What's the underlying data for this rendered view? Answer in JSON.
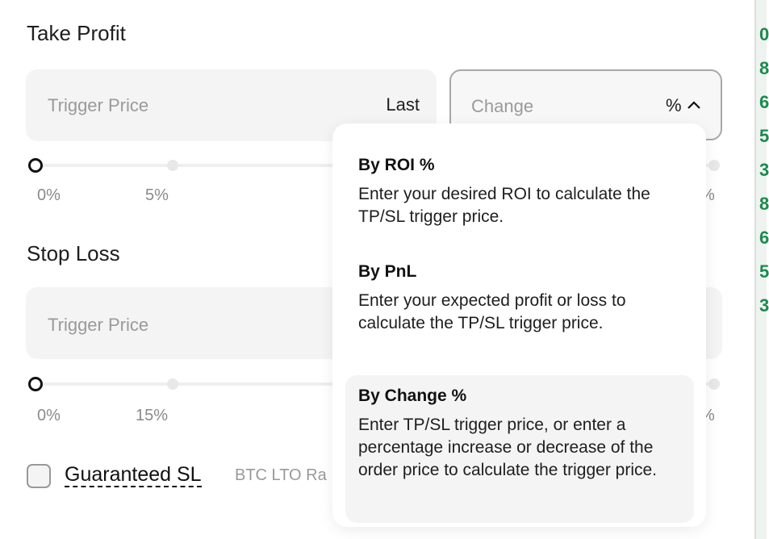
{
  "take_profit": {
    "title": "Take Profit",
    "trigger_placeholder": "Trigger Price",
    "price_type": "Last",
    "mode_placeholder": "Change",
    "mode_unit": "%",
    "slider": {
      "value_percent": 0,
      "ticks": [
        "0%",
        "5%"
      ],
      "end_label_fragment": "%"
    }
  },
  "stop_loss": {
    "title": "Stop Loss",
    "trigger_placeholder": "Trigger Price",
    "slider": {
      "value_percent": 0,
      "ticks": [
        "0%",
        "15%"
      ],
      "end_label_fragment": "%"
    }
  },
  "guaranteed_sl": {
    "checked": false,
    "label": "Guaranteed SL",
    "note_fragment": "BTC LTO Ra"
  },
  "dropdown": {
    "options": [
      {
        "title": "By ROI %",
        "desc": "Enter your desired ROI to calculate the TP/SL trigger price.",
        "selected": false
      },
      {
        "title": "By PnL",
        "desc": "Enter your expected profit or loss to calculate the TP/SL trigger price.",
        "selected": false
      },
      {
        "title": "By Change %",
        "desc": "Enter TP/SL trigger price, or enter a percentage increase or decrease of the order price to calculate the trigger price.",
        "selected": true
      }
    ]
  },
  "side_strip": {
    "digits": [
      "0",
      "8",
      "6",
      "5",
      "3",
      "8",
      "6",
      "5",
      "3"
    ],
    "color": "#1b8a4e"
  },
  "colors": {
    "field_bg": "#f4f4f4",
    "selected_bg": "#f4f4f4",
    "placeholder": "#9a9a9a"
  }
}
